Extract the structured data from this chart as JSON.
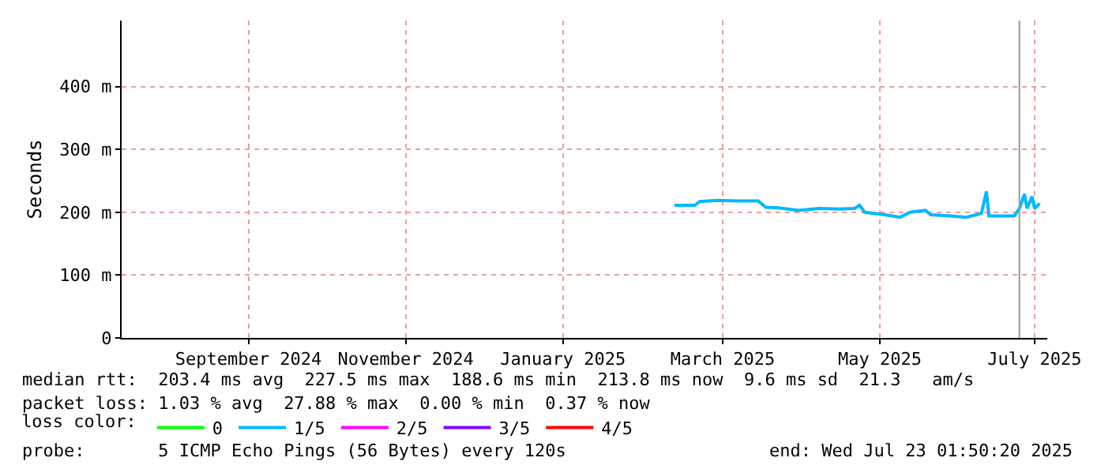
{
  "chart_data": {
    "type": "line",
    "ylabel": "Seconds",
    "x": [
      "2025-02-26",
      "2025-03-06",
      "2025-03-08",
      "2025-03-15",
      "2025-03-23",
      "2025-03-31",
      "2025-04-03",
      "2025-04-08",
      "2025-04-16",
      "2025-04-24",
      "2025-05-02",
      "2025-05-08",
      "2025-05-10",
      "2025-05-12",
      "2025-05-20",
      "2025-05-26",
      "2025-05-30",
      "2025-06-05",
      "2025-06-07",
      "2025-06-15",
      "2025-06-21",
      "2025-06-27",
      "2025-06-29",
      "2025-06-30",
      "2025-07-05",
      "2025-07-10",
      "2025-07-12",
      "2025-07-14",
      "2025-07-15",
      "2025-07-17",
      "2025-07-18",
      "2025-07-20"
    ],
    "series": [
      {
        "name": "0",
        "color": "#00ff00",
        "values": [
          null,
          null,
          null,
          null,
          null,
          null,
          null,
          null,
          null,
          null,
          null,
          null,
          null,
          null,
          null,
          null,
          null,
          null,
          null,
          null,
          null,
          null,
          null,
          null,
          null,
          null,
          null,
          null,
          null,
          null,
          null,
          null
        ]
      },
      {
        "name": "1/5",
        "color": "#00b8ff",
        "values": [
          211,
          211,
          217,
          219,
          218,
          218,
          208,
          207,
          203,
          206,
          205,
          206,
          211,
          200,
          196,
          192,
          200,
          203,
          196,
          194,
          192,
          198,
          233,
          194,
          194,
          194,
          206,
          229,
          206,
          225,
          206,
          214
        ]
      },
      {
        "name": "2/5",
        "color": "#ff00ff",
        "values": [
          null,
          null,
          null,
          null,
          null,
          null,
          null,
          null,
          null,
          null,
          null,
          null,
          null,
          null,
          null,
          null,
          null,
          null,
          null,
          null,
          null,
          null,
          null,
          null,
          null,
          null,
          null,
          null,
          null,
          null,
          null,
          null
        ]
      },
      {
        "name": "3/5",
        "color": "#7e00ff",
        "values": [
          null,
          null,
          null,
          null,
          null,
          null,
          null,
          null,
          null,
          null,
          null,
          null,
          null,
          null,
          null,
          null,
          null,
          null,
          null,
          null,
          null,
          null,
          null,
          null,
          null,
          null,
          null,
          null,
          null,
          null,
          null,
          null
        ]
      },
      {
        "name": "4/5",
        "color": "#ff0000",
        "values": [
          null,
          null,
          null,
          null,
          null,
          null,
          null,
          null,
          null,
          null,
          null,
          null,
          null,
          null,
          null,
          null,
          null,
          null,
          null,
          null,
          null,
          null,
          null,
          null,
          null,
          null,
          null,
          null,
          null,
          null,
          null,
          null
        ]
      }
    ],
    "xlim": [
      "2024-07-23",
      "2025-07-23"
    ],
    "xticks": [
      {
        "value": "2024-09-11",
        "label": "September 2024"
      },
      {
        "value": "2024-11-12",
        "label": "November 2024"
      },
      {
        "value": "2025-01-13",
        "label": "January 2025"
      },
      {
        "value": "2025-03-17",
        "label": "March 2025"
      },
      {
        "value": "2025-05-18",
        "label": "May 2025"
      },
      {
        "value": "2025-07-18",
        "label": "July 2025"
      }
    ],
    "ylim": [
      0,
      505
    ],
    "yticks": [
      0,
      {
        "value": 100,
        "label": "100 m"
      },
      {
        "value": 200,
        "label": "200 m"
      },
      {
        "value": 300,
        "label": "300 m"
      },
      {
        "value": 400,
        "label": "400 m"
      }
    ],
    "ref_lines": [
      {
        "axis": "x",
        "value": "2025-07-12",
        "label": null,
        "color": "#999999"
      }
    ],
    "grid": true,
    "legend": "bottom",
    "marker": "none",
    "line_style": "solid",
    "legend_title": "loss color:",
    "annotations": [
      "median rtt:  203.4 ms avg  227.5 ms max  188.6 ms min  213.8 ms now  9.6 ms sd  21.3   am/s",
      "packet loss: 1.03 % avg  27.88 % max  0.00 % min  0.37 % now",
      "probe:       5 ICMP Echo Pings (56 Bytes) every 120s",
      "end: Wed Jul 23 01:50:20 2025"
    ]
  }
}
